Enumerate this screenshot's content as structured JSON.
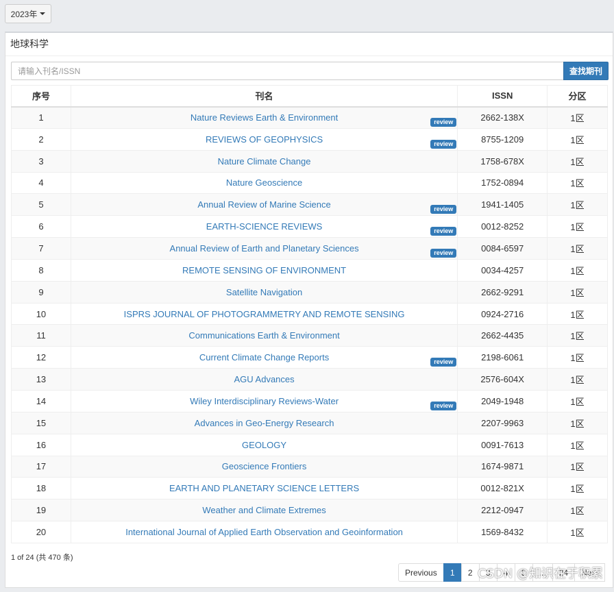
{
  "year_dropdown": {
    "label": "2023年"
  },
  "panel": {
    "title": "地球科学"
  },
  "search": {
    "placeholder": "请输入刊名/ISSN",
    "button": "查找期刊"
  },
  "table": {
    "headers": {
      "no": "序号",
      "name": "刊名",
      "issn": "ISSN",
      "quartile": "分区"
    },
    "rows": [
      {
        "no": "1",
        "name": "Nature Reviews Earth & Environment",
        "issn": "2662-138X",
        "q": "1区",
        "badge": "review"
      },
      {
        "no": "2",
        "name": "REVIEWS OF GEOPHYSICS",
        "issn": "8755-1209",
        "q": "1区",
        "badge": "review"
      },
      {
        "no": "3",
        "name": "Nature Climate Change",
        "issn": "1758-678X",
        "q": "1区",
        "badge": ""
      },
      {
        "no": "4",
        "name": "Nature Geoscience",
        "issn": "1752-0894",
        "q": "1区",
        "badge": ""
      },
      {
        "no": "5",
        "name": "Annual Review of Marine Science",
        "issn": "1941-1405",
        "q": "1区",
        "badge": "review"
      },
      {
        "no": "6",
        "name": "EARTH-SCIENCE REVIEWS",
        "issn": "0012-8252",
        "q": "1区",
        "badge": "review"
      },
      {
        "no": "7",
        "name": "Annual Review of Earth and Planetary Sciences",
        "issn": "0084-6597",
        "q": "1区",
        "badge": "review"
      },
      {
        "no": "8",
        "name": "REMOTE SENSING OF ENVIRONMENT",
        "issn": "0034-4257",
        "q": "1区",
        "badge": ""
      },
      {
        "no": "9",
        "name": "Satellite Navigation",
        "issn": "2662-9291",
        "q": "1区",
        "badge": ""
      },
      {
        "no": "10",
        "name": "ISPRS JOURNAL OF PHOTOGRAMMETRY AND REMOTE SENSING",
        "issn": "0924-2716",
        "q": "1区",
        "badge": ""
      },
      {
        "no": "11",
        "name": "Communications Earth & Environment",
        "issn": "2662-4435",
        "q": "1区",
        "badge": ""
      },
      {
        "no": "12",
        "name": "Current Climate Change Reports",
        "issn": "2198-6061",
        "q": "1区",
        "badge": "review"
      },
      {
        "no": "13",
        "name": "AGU Advances",
        "issn": "2576-604X",
        "q": "1区",
        "badge": ""
      },
      {
        "no": "14",
        "name": "Wiley Interdisciplinary Reviews-Water",
        "issn": "2049-1948",
        "q": "1区",
        "badge": "review"
      },
      {
        "no": "15",
        "name": "Advances in Geo-Energy Research",
        "issn": "2207-9963",
        "q": "1区",
        "badge": ""
      },
      {
        "no": "16",
        "name": "GEOLOGY",
        "issn": "0091-7613",
        "q": "1区",
        "badge": ""
      },
      {
        "no": "17",
        "name": "Geoscience Frontiers",
        "issn": "1674-9871",
        "q": "1区",
        "badge": ""
      },
      {
        "no": "18",
        "name": "EARTH AND PLANETARY SCIENCE LETTERS",
        "issn": "0012-821X",
        "q": "1区",
        "badge": ""
      },
      {
        "no": "19",
        "name": "Weather and Climate Extremes",
        "issn": "2212-0947",
        "q": "1区",
        "badge": ""
      },
      {
        "no": "20",
        "name": "International Journal of Applied Earth Observation and Geoinformation",
        "issn": "1569-8432",
        "q": "1区",
        "badge": ""
      }
    ]
  },
  "pagination": {
    "info": "1 of 24 (共 470 条)",
    "previous": "Previous",
    "pages": [
      "1",
      "2",
      "3",
      "4",
      "5",
      "...",
      "24"
    ],
    "active_page": "1",
    "next": "Next"
  },
  "watermark": "CSDN @知识在于积累",
  "colors": {
    "primary": "#337ab7",
    "stripe": "#f9f9f9"
  }
}
